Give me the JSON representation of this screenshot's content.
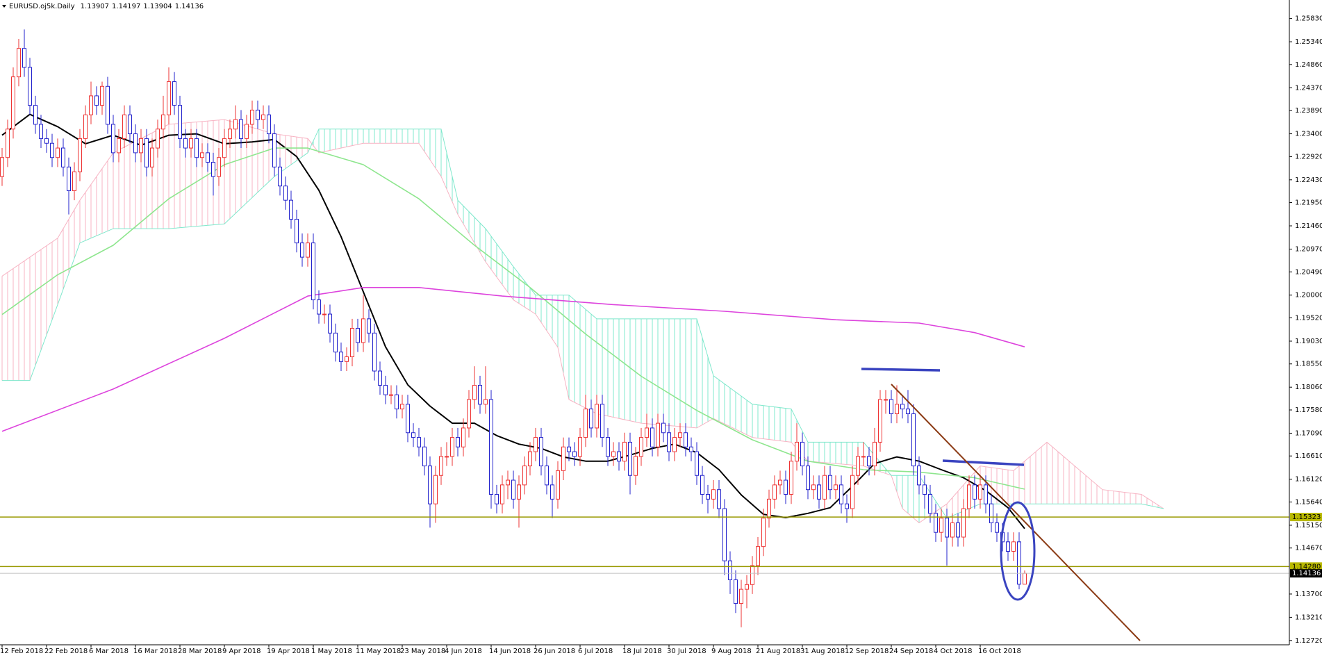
{
  "chart_data": {
    "type": "candlestick",
    "title": "EURUSD.oj5k.Daily",
    "header_values": [
      1.13907,
      1.14197,
      1.13904,
      1.14136
    ],
    "up_color": "#ee3333",
    "down_color": "#2222cc",
    "categories": [
      "12 Feb 2018",
      null,
      null,
      null,
      null,
      null,
      null,
      null,
      "22 Feb 2018",
      null,
      null,
      null,
      null,
      null,
      null,
      null,
      "6 Mar 2018",
      null,
      null,
      null,
      null,
      null,
      null,
      null,
      "16 Mar 2018",
      null,
      null,
      null,
      null,
      null,
      null,
      null,
      "28 Mar 2018",
      null,
      null,
      null,
      null,
      null,
      null,
      null,
      "9 Apr 2018",
      null,
      null,
      null,
      null,
      null,
      null,
      null,
      "19 Apr 2018",
      null,
      null,
      null,
      null,
      null,
      null,
      null,
      "1 May 2018",
      null,
      null,
      null,
      null,
      null,
      null,
      null,
      "11 May 2018",
      null,
      null,
      null,
      null,
      null,
      null,
      null,
      "23 May 2018",
      null,
      null,
      null,
      null,
      null,
      null,
      null,
      "4 Jun 2018",
      null,
      null,
      null,
      null,
      null,
      null,
      null,
      "14 Jun 2018",
      null,
      null,
      null,
      null,
      null,
      null,
      null,
      "26 Jun 2018",
      null,
      null,
      null,
      null,
      null,
      null,
      null,
      "6 Jul 2018",
      null,
      null,
      null,
      null,
      null,
      null,
      null,
      "18 Jul 2018",
      null,
      null,
      null,
      null,
      null,
      null,
      null,
      "30 Jul 2018",
      null,
      null,
      null,
      null,
      null,
      null,
      null,
      "9 Aug 2018",
      null,
      null,
      null,
      null,
      null,
      null,
      null,
      "21 Aug 2018",
      null,
      null,
      null,
      null,
      null,
      null,
      null,
      "31 Aug 2018",
      null,
      null,
      null,
      null,
      null,
      null,
      null,
      "12 Sep 2018",
      null,
      null,
      null,
      null,
      null,
      null,
      null,
      "24 Sep 2018",
      null,
      null,
      null,
      null,
      null,
      null,
      null,
      "4 Oct 2018",
      null,
      null,
      null,
      null,
      null,
      null,
      null,
      "16 Oct 2018",
      null,
      null,
      null,
      null,
      null,
      null,
      null,
      null
    ],
    "open": [
      1.225,
      1.229,
      1.235,
      1.246,
      1.252,
      1.248,
      1.24,
      1.236,
      1.233,
      1.232,
      1.229,
      1.231,
      1.227,
      1.222,
      1.226,
      1.233,
      1.238,
      1.242,
      1.24,
      1.244,
      1.236,
      1.23,
      1.233,
      1.238,
      1.234,
      1.23,
      1.233,
      1.227,
      1.231,
      1.235,
      1.238,
      1.245,
      1.24,
      1.233,
      1.231,
      1.233,
      1.229,
      1.23,
      1.228,
      1.225,
      1.229,
      1.233,
      1.235,
      1.237,
      1.233,
      1.236,
      1.239,
      1.237,
      1.238,
      1.234,
      1.227,
      1.223,
      1.22,
      1.216,
      1.211,
      1.208,
      1.211,
      1.199,
      1.196,
      1.196,
      1.192,
      1.188,
      1.186,
      1.187,
      1.193,
      1.19,
      1.195,
      1.192,
      1.184,
      1.181,
      1.179,
      1.179,
      1.176,
      1.177,
      1.171,
      1.17,
      1.168,
      1.164,
      1.156,
      1.162,
      1.166,
      1.166,
      1.17,
      1.168,
      1.172,
      1.178,
      1.181,
      1.177,
      1.178,
      1.158,
      1.156,
      1.16,
      1.161,
      1.157,
      1.16,
      1.164,
      1.167,
      1.17,
      1.164,
      1.16,
      1.157,
      1.163,
      1.168,
      1.167,
      1.166,
      1.17,
      1.176,
      1.172,
      1.177,
      1.17,
      1.166,
      1.167,
      1.165,
      1.169,
      1.162,
      1.166,
      1.17,
      1.172,
      1.168,
      1.173,
      1.171,
      1.167,
      1.17,
      1.171,
      1.168,
      1.167,
      1.162,
      1.158,
      1.157,
      1.159,
      1.155,
      1.144,
      1.14,
      1.135,
      1.138,
      1.139,
      1.143,
      1.147,
      1.153,
      1.157,
      1.16,
      1.161,
      1.158,
      1.165,
      1.169,
      1.164,
      1.159,
      1.16,
      1.157,
      1.162,
      1.159,
      1.16,
      1.156,
      1.155,
      1.162,
      1.166,
      1.166,
      1.164,
      1.169,
      1.178,
      1.178,
      1.175,
      1.177,
      1.176,
      1.175,
      1.164,
      1.16,
      1.158,
      1.154,
      1.15,
      1.153,
      1.149,
      1.152,
      1.149,
      1.155,
      1.16,
      1.157,
      1.16,
      1.156,
      1.152,
      1.15,
      1.148,
      1.146,
      1.148,
      1.13907
    ],
    "high": [
      1.231,
      1.237,
      1.248,
      1.254,
      1.256,
      1.25,
      1.242,
      1.238,
      1.235,
      1.234,
      1.233,
      1.233,
      1.229,
      1.228,
      1.235,
      1.24,
      1.245,
      1.244,
      1.245,
      1.246,
      1.238,
      1.235,
      1.24,
      1.24,
      1.236,
      1.235,
      1.235,
      1.233,
      1.237,
      1.242,
      1.248,
      1.247,
      1.242,
      1.235,
      1.235,
      1.235,
      1.232,
      1.232,
      1.23,
      1.231,
      1.235,
      1.237,
      1.24,
      1.239,
      1.238,
      1.241,
      1.241,
      1.24,
      1.24,
      1.236,
      1.229,
      1.225,
      1.222,
      1.218,
      1.213,
      1.213,
      1.213,
      1.201,
      1.198,
      1.198,
      1.194,
      1.19,
      1.189,
      1.195,
      1.195,
      1.2,
      1.197,
      1.194,
      1.186,
      1.183,
      1.181,
      1.181,
      1.179,
      1.179,
      1.173,
      1.172,
      1.17,
      1.166,
      1.164,
      1.168,
      1.169,
      1.172,
      1.172,
      1.174,
      1.18,
      1.185,
      1.183,
      1.185,
      1.18,
      1.16,
      1.162,
      1.163,
      1.163,
      1.162,
      1.166,
      1.169,
      1.172,
      1.172,
      1.166,
      1.162,
      1.165,
      1.17,
      1.17,
      1.169,
      1.172,
      1.179,
      1.178,
      1.179,
      1.179,
      1.172,
      1.169,
      1.169,
      1.171,
      1.171,
      1.168,
      1.172,
      1.175,
      1.174,
      1.175,
      1.175,
      1.173,
      1.172,
      1.173,
      1.173,
      1.17,
      1.169,
      1.164,
      1.16,
      1.161,
      1.161,
      1.157,
      1.146,
      1.142,
      1.14,
      1.141,
      1.145,
      1.149,
      1.155,
      1.159,
      1.162,
      1.163,
      1.163,
      1.167,
      1.173,
      1.171,
      1.166,
      1.162,
      1.162,
      1.164,
      1.164,
      1.162,
      1.162,
      1.158,
      1.164,
      1.168,
      1.169,
      1.168,
      1.172,
      1.18,
      1.18,
      1.18,
      1.181,
      1.179,
      1.18,
      1.177,
      1.166,
      1.162,
      1.16,
      1.156,
      1.155,
      1.155,
      1.154,
      1.154,
      1.157,
      1.162,
      1.162,
      1.162,
      1.162,
      1.158,
      1.154,
      1.152,
      1.15,
      1.15,
      1.15,
      1.14197
    ],
    "low": [
      1.223,
      1.227,
      1.233,
      1.244,
      1.246,
      1.238,
      1.234,
      1.231,
      1.23,
      1.227,
      1.227,
      1.225,
      1.217,
      1.22,
      1.224,
      1.231,
      1.236,
      1.238,
      1.238,
      1.234,
      1.228,
      1.228,
      1.231,
      1.232,
      1.228,
      1.228,
      1.225,
      1.225,
      1.229,
      1.233,
      1.236,
      1.238,
      1.231,
      1.229,
      1.229,
      1.227,
      1.227,
      1.226,
      1.221,
      1.223,
      1.227,
      1.231,
      1.233,
      1.231,
      1.231,
      1.234,
      1.235,
      1.235,
      1.232,
      1.225,
      1.221,
      1.218,
      1.214,
      1.209,
      1.206,
      1.206,
      1.197,
      1.194,
      1.194,
      1.19,
      1.186,
      1.184,
      1.184,
      1.185,
      1.188,
      1.188,
      1.19,
      1.182,
      1.179,
      1.177,
      1.177,
      1.174,
      1.174,
      1.169,
      1.168,
      1.166,
      1.162,
      1.151,
      1.152,
      1.16,
      1.164,
      1.164,
      1.166,
      1.166,
      1.17,
      1.176,
      1.175,
      1.175,
      1.155,
      1.154,
      1.154,
      1.157,
      1.155,
      1.151,
      1.158,
      1.162,
      1.165,
      1.162,
      1.158,
      1.153,
      1.155,
      1.161,
      1.165,
      1.164,
      1.164,
      1.168,
      1.17,
      1.17,
      1.168,
      1.164,
      1.164,
      1.163,
      1.163,
      1.158,
      1.16,
      1.164,
      1.168,
      1.166,
      1.166,
      1.169,
      1.165,
      1.165,
      1.168,
      1.166,
      1.165,
      1.16,
      1.156,
      1.154,
      1.155,
      1.153,
      1.141,
      1.137,
      1.133,
      1.13,
      1.134,
      1.137,
      1.141,
      1.145,
      1.151,
      1.155,
      1.158,
      1.156,
      1.156,
      1.163,
      1.162,
      1.157,
      1.157,
      1.155,
      1.155,
      1.157,
      1.157,
      1.154,
      1.152,
      1.153,
      1.16,
      1.164,
      1.162,
      1.162,
      1.167,
      1.175,
      1.173,
      1.173,
      1.174,
      1.173,
      1.162,
      1.158,
      1.155,
      1.152,
      1.148,
      1.148,
      1.143,
      1.147,
      1.147,
      1.147,
      1.153,
      1.155,
      1.155,
      1.154,
      1.15,
      1.148,
      1.146,
      1.144,
      1.144,
      1.138,
      1.13904
    ],
    "close": [
      1.229,
      1.235,
      1.246,
      1.252,
      1.248,
      1.24,
      1.236,
      1.233,
      1.232,
      1.229,
      1.231,
      1.227,
      1.222,
      1.226,
      1.233,
      1.238,
      1.242,
      1.24,
      1.244,
      1.236,
      1.23,
      1.233,
      1.238,
      1.234,
      1.23,
      1.233,
      1.227,
      1.231,
      1.235,
      1.238,
      1.245,
      1.24,
      1.233,
      1.231,
      1.233,
      1.229,
      1.23,
      1.228,
      1.225,
      1.229,
      1.233,
      1.235,
      1.237,
      1.233,
      1.236,
      1.239,
      1.237,
      1.238,
      1.234,
      1.227,
      1.223,
      1.22,
      1.216,
      1.211,
      1.208,
      1.211,
      1.199,
      1.196,
      1.196,
      1.192,
      1.188,
      1.186,
      1.187,
      1.193,
      1.19,
      1.195,
      1.192,
      1.184,
      1.181,
      1.179,
      1.179,
      1.176,
      1.177,
      1.171,
      1.17,
      1.168,
      1.164,
      1.156,
      1.162,
      1.166,
      1.166,
      1.17,
      1.168,
      1.172,
      1.178,
      1.181,
      1.177,
      1.178,
      1.158,
      1.156,
      1.16,
      1.161,
      1.157,
      1.16,
      1.164,
      1.167,
      1.17,
      1.164,
      1.16,
      1.157,
      1.163,
      1.168,
      1.167,
      1.166,
      1.17,
      1.176,
      1.172,
      1.177,
      1.17,
      1.166,
      1.167,
      1.165,
      1.169,
      1.162,
      1.166,
      1.17,
      1.172,
      1.168,
      1.173,
      1.171,
      1.167,
      1.17,
      1.171,
      1.168,
      1.167,
      1.162,
      1.158,
      1.157,
      1.159,
      1.155,
      1.144,
      1.14,
      1.135,
      1.138,
      1.139,
      1.143,
      1.147,
      1.153,
      1.157,
      1.16,
      1.161,
      1.158,
      1.165,
      1.169,
      1.164,
      1.159,
      1.16,
      1.157,
      1.162,
      1.159,
      1.16,
      1.156,
      1.155,
      1.162,
      1.166,
      1.166,
      1.164,
      1.169,
      1.178,
      1.178,
      1.175,
      1.177,
      1.176,
      1.175,
      1.164,
      1.16,
      1.158,
      1.154,
      1.15,
      1.153,
      1.149,
      1.152,
      1.149,
      1.155,
      1.16,
      1.157,
      1.16,
      1.156,
      1.152,
      1.15,
      1.148,
      1.146,
      1.148,
      1.13907,
      1.14136
    ],
    "lines": [
      {
        "color": "#000000",
        "x": [
          0,
          5,
          10,
          15,
          20,
          25,
          30,
          35,
          40,
          45,
          49,
          53,
          57,
          61,
          65,
          69,
          73,
          77,
          81,
          85,
          89,
          93,
          97,
          101,
          105,
          109,
          113,
          117,
          121,
          125,
          129,
          133,
          137,
          141,
          145,
          149,
          153,
          157,
          161,
          165,
          169,
          173,
          177,
          181,
          184
        ],
        "values": [
          1.2337,
          1.2381,
          1.2355,
          1.2319,
          1.2337,
          1.2316,
          1.2337,
          1.234,
          1.2319,
          1.2323,
          1.2328,
          1.2292,
          1.2221,
          1.2123,
          1.2007,
          1.1891,
          1.1811,
          1.1766,
          1.173,
          1.173,
          1.1704,
          1.1686,
          1.1677,
          1.1659,
          1.165,
          1.165,
          1.1663,
          1.1677,
          1.1686,
          1.1668,
          1.1632,
          1.1579,
          1.1538,
          1.1531,
          1.154,
          1.1552,
          1.1597,
          1.1645,
          1.1659,
          1.165,
          1.1632,
          1.1615,
          1.1588,
          1.1552,
          1.1508
        ]
      },
      {
        "color": "#8ee68e",
        "x": [
          0,
          10,
          20,
          30,
          40,
          49,
          55,
          65,
          75,
          85,
          95,
          105,
          115,
          125,
          135,
          145,
          155,
          165,
          175,
          184
        ],
        "values": [
          1.1959,
          1.2043,
          1.2105,
          1.2203,
          1.2275,
          1.231,
          1.231,
          1.2275,
          1.2203,
          1.2105,
          1.2016,
          1.1918,
          1.1829,
          1.1757,
          1.1695,
          1.165,
          1.1632,
          1.1627,
          1.1615,
          1.1591
        ]
      },
      {
        "color": "#dd44dd",
        "x": [
          0,
          20,
          40,
          55,
          65,
          75,
          90,
          110,
          130,
          150,
          165,
          175,
          184
        ],
        "values": [
          1.1713,
          1.1802,
          1.1909,
          1.1998,
          1.2016,
          1.2016,
          1.1998,
          1.198,
          1.1966,
          1.1948,
          1.1941,
          1.1921,
          1.1891
        ]
      }
    ],
    "cloud": {
      "color_a": "#f7b3c3",
      "color_b": "#7fe8cc",
      "x": [
        0,
        5,
        10,
        14,
        20,
        30,
        40,
        49,
        55,
        57,
        65,
        75,
        79,
        82,
        87,
        92,
        96,
        100,
        102,
        107,
        115,
        125,
        128,
        135,
        142,
        145,
        155,
        160,
        162,
        165,
        170,
        176,
        182,
        188,
        193,
        198,
        205,
        209
      ],
      "span_a": [
        1.204,
        1.208,
        1.212,
        1.22,
        1.23,
        1.236,
        1.237,
        1.234,
        1.233,
        1.23,
        1.232,
        1.232,
        1.225,
        1.217,
        1.207,
        1.199,
        1.196,
        1.189,
        1.178,
        1.175,
        1.173,
        1.172,
        1.174,
        1.17,
        1.169,
        1.165,
        1.164,
        1.162,
        1.155,
        1.152,
        1.156,
        1.164,
        1.163,
        1.169,
        1.164,
        1.159,
        1.158,
        1.155
      ],
      "span_b": [
        1.182,
        1.182,
        1.198,
        1.211,
        1.214,
        1.214,
        1.215,
        1.225,
        1.23,
        1.235,
        1.235,
        1.235,
        1.235,
        1.22,
        1.214,
        1.206,
        1.2,
        1.2,
        1.2,
        1.195,
        1.195,
        1.195,
        1.183,
        1.177,
        1.176,
        1.169,
        1.169,
        1.162,
        1.162,
        1.162,
        1.153,
        1.156,
        1.156,
        1.156,
        1.156,
        1.156,
        1.156,
        1.155
      ]
    },
    "levels": [
      {
        "value": 1.15323,
        "color": "#999900",
        "label_bg": "#b8b800",
        "label_fg": "#000000"
      },
      {
        "value": {
          "value": 1.1428,
          "label": "1.14280"
        },
        "color": "#999900",
        "label_bg": "#b8b800",
        "label_fg": "#000000"
      },
      {
        "value": 1.14136,
        "color": "#c0c0c0",
        "label_bg": "#000000",
        "label_fg": "#ffffff"
      }
    ],
    "ylim": [
      1.1263,
      1.2622
    ],
    "yticks": [
      {
        "value": 1.2583,
        "label": "1.25830"
      },
      {
        "value": 1.2534,
        "label": "1.25340"
      },
      {
        "value": 1.2486,
        "label": "1.24860"
      },
      {
        "value": 1.2437,
        "label": "1.24370"
      },
      {
        "value": 1.2389,
        "label": "1.23890"
      },
      {
        "value": 1.234,
        "label": "1.23400"
      },
      {
        "value": 1.2292,
        "label": "1.22920"
      },
      {
        "value": 1.2243,
        "label": "1.22430"
      },
      {
        "value": 1.2195,
        "label": "1.21950"
      },
      {
        "value": 1.2146,
        "label": "1.21460"
      },
      {
        "value": 1.2097,
        "label": "1.20970"
      },
      {
        "value": 1.2049,
        "label": "1.20490"
      },
      {
        "value": 1.2,
        "label": "1.20000"
      },
      {
        "value": 1.1952,
        "label": "1.19520"
      },
      {
        "value": 1.1903,
        "label": "1.19030"
      },
      {
        "value": 1.1855,
        "label": "1.18550"
      },
      {
        "value": 1.1806,
        "label": "1.18060"
      },
      {
        "value": 1.1758,
        "label": "1.17580"
      },
      {
        "value": 1.1709,
        "label": "1.17090"
      },
      {
        "value": 1.1661,
        "label": "1.16610"
      },
      {
        "value": 1.1612,
        "label": "1.16120"
      },
      {
        "value": 1.1564,
        "label": "1.15640"
      },
      {
        "value": 1.1515,
        "label": "1.15150"
      },
      {
        "value": 1.1467,
        "label": "1.14670"
      },
      {
        "value": 1.137,
        "label": "1.13700"
      },
      {
        "value": 1.1321,
        "label": "1.13210"
      },
      {
        "value": 1.1272,
        "label": "1.12720"
      }
    ]
  }
}
